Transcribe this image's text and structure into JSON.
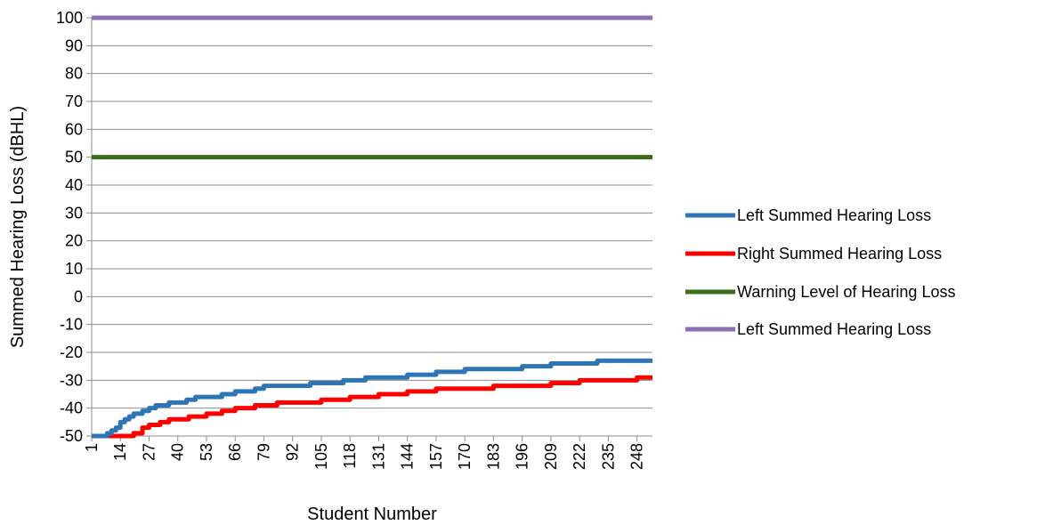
{
  "chart_data": {
    "type": "line",
    "xlabel": "Student Number",
    "ylabel": "Summed Hearing Loss (dBHL)",
    "ylim": [
      -50,
      100
    ],
    "yticks": [
      100,
      90,
      80,
      70,
      60,
      50,
      40,
      30,
      20,
      10,
      0,
      -10,
      -20,
      -30,
      -40,
      -50
    ],
    "xlim": [
      1,
      255
    ],
    "xticks": [
      1,
      14,
      27,
      40,
      53,
      66,
      79,
      92,
      105,
      118,
      131,
      144,
      157,
      170,
      183,
      196,
      209,
      222,
      235,
      248
    ],
    "grid": "horizontal",
    "legend_position": "right",
    "series": [
      {
        "name": "Left Summed Hearing Loss",
        "color": "#2E75B6",
        "x": [
          1,
          5,
          8,
          10,
          12,
          14,
          16,
          18,
          20,
          24,
          27,
          30,
          33,
          36,
          40,
          44,
          48,
          53,
          60,
          66,
          75,
          79,
          90,
          100,
          105,
          115,
          125,
          135,
          144,
          157,
          170,
          180,
          196,
          209,
          222,
          230,
          240,
          255
        ],
        "y": [
          -50,
          -50,
          -49,
          -48,
          -47,
          -45,
          -44,
          -43,
          -42,
          -41,
          -40,
          -39,
          -39,
          -38,
          -38,
          -37,
          -36,
          -36,
          -35,
          -34,
          -33,
          -32,
          -32,
          -31,
          -31,
          -30,
          -29,
          -29,
          -28,
          -27,
          -26,
          -26,
          -25,
          -24,
          -24,
          -23,
          -23,
          -23
        ]
      },
      {
        "name": "Right Summed Hearing Loss",
        "color": "#FF0000",
        "x": [
          1,
          10,
          17,
          20,
          24,
          27,
          32,
          36,
          40,
          45,
          53,
          60,
          66,
          75,
          85,
          92,
          105,
          118,
          131,
          144,
          157,
          170,
          183,
          196,
          209,
          222,
          235,
          248,
          255
        ],
        "y": [
          -50,
          -50,
          -50,
          -49,
          -47,
          -46,
          -45,
          -44,
          -44,
          -43,
          -42,
          -41,
          -40,
          -39,
          -38,
          -38,
          -37,
          -36,
          -35,
          -34,
          -33,
          -33,
          -32,
          -32,
          -31,
          -30,
          -30,
          -29,
          -29
        ]
      },
      {
        "name": "Warning Level of Hearing Loss",
        "color": "#3A6E1A",
        "x": [
          1,
          255
        ],
        "y": [
          50,
          50
        ]
      },
      {
        "name": "Left Summed Hearing Loss",
        "color": "#8E6FB5",
        "x": [
          1,
          255
        ],
        "y": [
          100,
          100
        ]
      }
    ]
  }
}
